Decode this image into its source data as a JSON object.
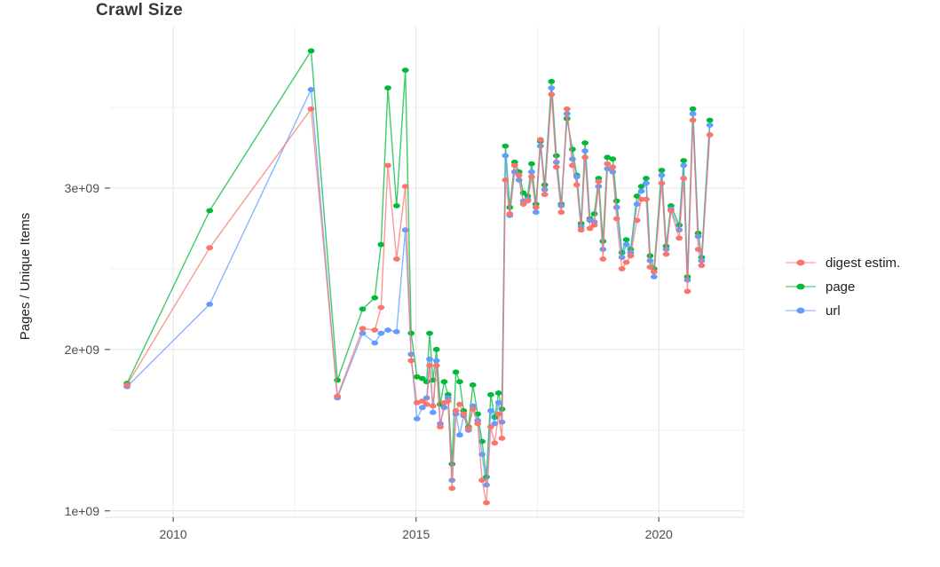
{
  "title": "Crawl Size",
  "chart_data": {
    "type": "line",
    "title": "Crawl Size",
    "xlabel": "",
    "ylabel": "Pages / Unique Items",
    "y_unit_multiplier": 1000000000.0,
    "grid": true,
    "legend_position": "right",
    "x_domain": [
      2008.7,
      2021.75
    ],
    "y_domain": [
      0.96,
      4.0
    ],
    "x_ticks": [
      {
        "value": 2010,
        "label": "2010"
      },
      {
        "value": 2015,
        "label": "2015"
      },
      {
        "value": 2020,
        "label": "2020"
      }
    ],
    "y_ticks": [
      {
        "value": 1,
        "label": "1e+09"
      },
      {
        "value": 2,
        "label": "2e+09"
      },
      {
        "value": 3,
        "label": "3e+09"
      }
    ],
    "x_minor": [
      2012.5,
      2017.5
    ],
    "y_minor": [
      1.5,
      2.5,
      3.5
    ],
    "x": [
      2009.05,
      2010.75,
      2012.84,
      2013.38,
      2013.9,
      2014.15,
      2014.28,
      2014.42,
      2014.6,
      2014.78,
      2014.9,
      2015.02,
      2015.13,
      2015.22,
      2015.28,
      2015.35,
      2015.42,
      2015.5,
      2015.58,
      2015.66,
      2015.74,
      2015.82,
      2015.9,
      2015.98,
      2016.08,
      2016.17,
      2016.27,
      2016.36,
      2016.45,
      2016.54,
      2016.62,
      2016.7,
      2016.77,
      2016.84,
      2016.93,
      2017.03,
      2017.12,
      2017.21,
      2017.3,
      2017.38,
      2017.47,
      2017.56,
      2017.65,
      2017.79,
      2017.89,
      2017.99,
      2018.11,
      2018.22,
      2018.31,
      2018.4,
      2018.48,
      2018.58,
      2018.67,
      2018.76,
      2018.85,
      2018.94,
      2019.05,
      2019.13,
      2019.24,
      2019.33,
      2019.42,
      2019.55,
      2019.64,
      2019.74,
      2019.82,
      2019.9,
      2020.06,
      2020.15,
      2020.25,
      2020.42,
      2020.51,
      2020.59,
      2020.7,
      2020.81,
      2020.88,
      2021.05
    ],
    "series": [
      {
        "name": "digest estim.",
        "color": "#F8766D",
        "values": [
          1.78,
          2.63,
          3.49,
          1.71,
          2.13,
          2.12,
          2.26,
          3.14,
          2.56,
          3.01,
          1.93,
          1.67,
          1.68,
          1.66,
          1.9,
          1.65,
          1.9,
          1.52,
          1.67,
          1.68,
          1.14,
          1.62,
          1.66,
          1.6,
          1.51,
          1.63,
          1.54,
          1.19,
          1.05,
          1.52,
          1.42,
          1.6,
          1.45,
          3.05,
          2.84,
          3.14,
          3.08,
          2.9,
          2.92,
          3.07,
          2.88,
          3.3,
          2.96,
          3.58,
          3.13,
          2.85,
          3.49,
          3.14,
          3.02,
          2.74,
          3.19,
          2.75,
          2.77,
          3.04,
          2.56,
          3.15,
          3.13,
          2.81,
          2.5,
          2.54,
          2.58,
          2.8,
          2.93,
          2.93,
          2.51,
          2.48,
          3.03,
          2.59,
          2.86,
          2.69,
          3.06,
          2.36,
          3.42,
          2.62,
          2.52,
          3.33
        ]
      },
      {
        "name": "page",
        "color": "#00BA38",
        "values": [
          1.79,
          2.86,
          3.85,
          1.81,
          2.25,
          2.32,
          2.65,
          3.62,
          2.89,
          3.73,
          2.1,
          1.83,
          1.82,
          1.8,
          2.1,
          1.81,
          2.0,
          1.66,
          1.8,
          1.72,
          1.29,
          1.86,
          1.8,
          1.62,
          1.52,
          1.78,
          1.6,
          1.43,
          1.21,
          1.72,
          1.58,
          1.73,
          1.63,
          3.26,
          2.88,
          3.16,
          3.1,
          2.97,
          2.95,
          3.15,
          2.9,
          3.29,
          3.02,
          3.66,
          3.2,
          2.9,
          3.43,
          3.24,
          3.08,
          2.78,
          3.28,
          2.81,
          2.84,
          3.06,
          2.67,
          3.19,
          3.18,
          2.92,
          2.6,
          2.68,
          2.62,
          2.95,
          3.01,
          3.06,
          2.58,
          2.5,
          3.11,
          2.64,
          2.89,
          2.77,
          3.17,
          2.45,
          3.49,
          2.72,
          2.57,
          3.42
        ]
      },
      {
        "name": "url",
        "color": "#619CFF",
        "values": [
          1.77,
          2.28,
          3.61,
          1.7,
          2.1,
          2.04,
          2.1,
          2.12,
          2.11,
          2.74,
          1.97,
          1.57,
          1.64,
          1.7,
          1.94,
          1.61,
          1.93,
          1.54,
          1.64,
          1.7,
          1.19,
          1.6,
          1.47,
          1.59,
          1.5,
          1.65,
          1.56,
          1.35,
          1.16,
          1.62,
          1.54,
          1.67,
          1.55,
          3.2,
          2.83,
          3.1,
          3.05,
          2.92,
          2.93,
          3.1,
          2.85,
          3.26,
          2.99,
          3.62,
          3.16,
          2.89,
          3.46,
          3.18,
          3.07,
          2.76,
          3.23,
          2.8,
          2.79,
          3.01,
          2.62,
          3.12,
          3.1,
          2.88,
          2.57,
          2.65,
          2.6,
          2.9,
          2.98,
          3.03,
          2.55,
          2.45,
          3.08,
          2.62,
          2.87,
          2.74,
          3.14,
          2.43,
          3.46,
          2.7,
          2.55,
          3.39
        ]
      }
    ],
    "draw_order": [
      1,
      2,
      0
    ],
    "colors": {
      "grid_major": "#e4e4e4",
      "grid_minor": "#f1f1f1",
      "panel_border": "#e0e0e0",
      "tick_mark": "#555555"
    }
  }
}
